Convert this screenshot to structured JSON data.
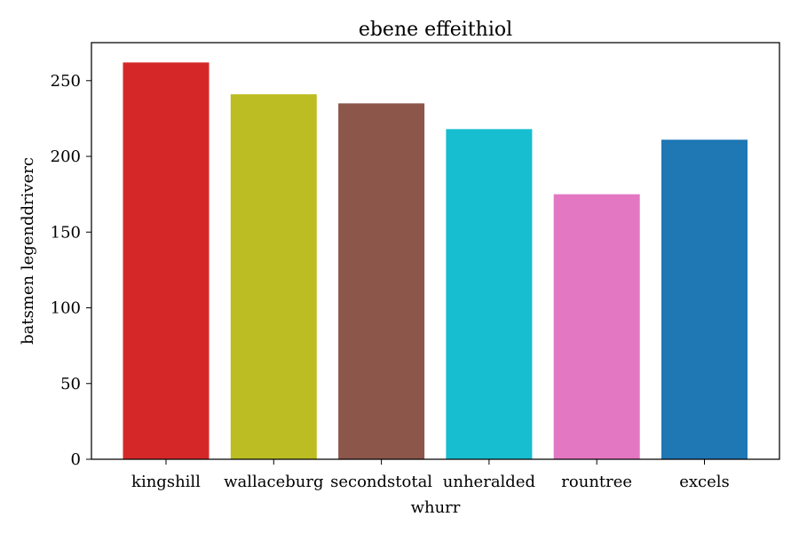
{
  "chart_data": {
    "type": "bar",
    "title": "ebene effeithiol",
    "xlabel": "whurr",
    "ylabel": "batsmen legenddriverc",
    "categories": [
      "kingshill",
      "wallaceburg",
      "secondstotal",
      "unheralded",
      "rountree",
      "excels"
    ],
    "values": [
      262,
      241,
      235,
      218,
      175,
      211
    ],
    "colors": [
      "#d62728",
      "#bcbd22",
      "#8c564b",
      "#17becf",
      "#e377c2",
      "#1f77b4"
    ],
    "yticks": [
      0,
      50,
      100,
      150,
      200,
      250
    ],
    "ylim": [
      0,
      275.1
    ],
    "grid": false,
    "legend": "none"
  }
}
